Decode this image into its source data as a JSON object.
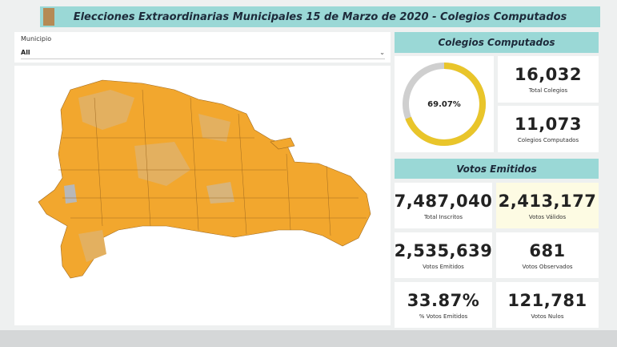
{
  "header": {
    "title": "Elecciones Extraordinarias Municipales 15 de Marzo de 2020 - Colegios Computados"
  },
  "filter": {
    "label": "Municipio",
    "value": "All"
  },
  "colegios": {
    "title": "Colegios Computados",
    "gauge": {
      "value": 69.07,
      "label": "69.07%"
    },
    "cards": [
      {
        "value": "16,032",
        "label": "Total Colegios"
      },
      {
        "value": "11,073",
        "label": "Colegios Computados"
      }
    ]
  },
  "votos": {
    "title": "Votos Emitidos",
    "cards": [
      {
        "value": "7,487,040",
        "label": "Total Inscritos"
      },
      {
        "value": "2,413,177",
        "label": "Votos Válidos"
      },
      {
        "value": "2,535,639",
        "label": "Votos Emitidos"
      },
      {
        "value": "681",
        "label": "Votos Observados"
      },
      {
        "value": "33.87%",
        "label": "% Votos Emitidos"
      },
      {
        "value": "121,781",
        "label": "Votos Nulos"
      }
    ]
  }
}
